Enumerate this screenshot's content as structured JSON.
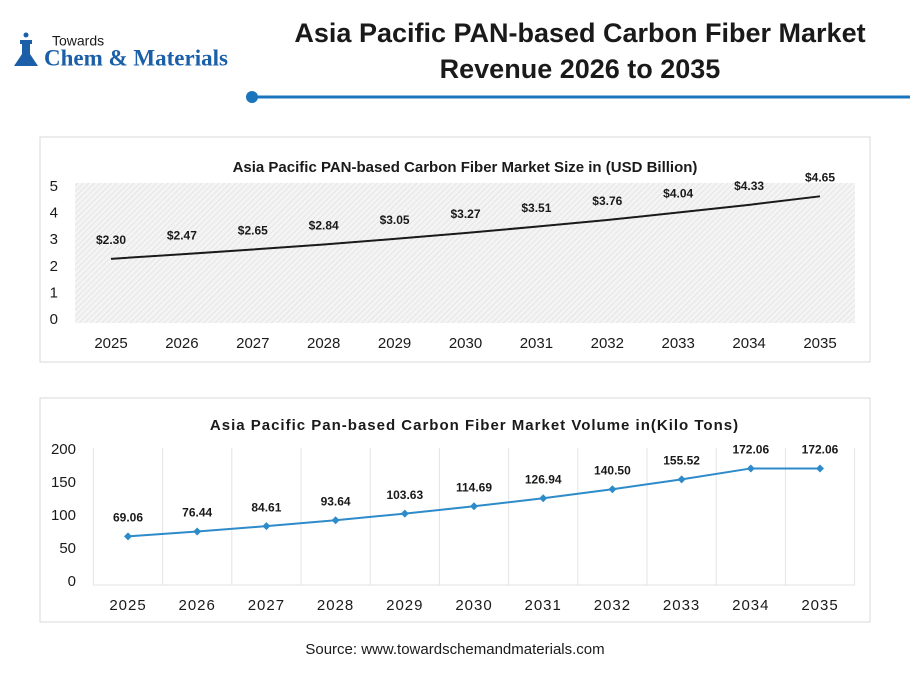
{
  "logo": {
    "top": "Towards",
    "name": "Chem & Materials"
  },
  "title_lines": [
    "Asia Pacific PAN-based Carbon Fiber Market",
    "Revenue 2026 to 2035"
  ],
  "chart_data": [
    {
      "type": "line",
      "title": "Asia Pacific PAN-based Carbon Fiber Market Size in (USD Billion)",
      "categories": [
        "2025",
        "2026",
        "2027",
        "2028",
        "2029",
        "2030",
        "2031",
        "2032",
        "2033",
        "2034",
        "2035"
      ],
      "values": [
        2.3,
        2.47,
        2.65,
        2.84,
        3.05,
        3.27,
        3.51,
        3.76,
        4.04,
        4.33,
        4.65
      ],
      "value_labels": [
        "$2.30",
        "$2.47",
        "$2.65",
        "$2.84",
        "$3.05",
        "$3.27",
        "$3.51",
        "$3.76",
        "$4.04",
        "$4.33",
        "$4.65"
      ],
      "color": "#1a1a1a",
      "ylim": [
        0,
        5
      ],
      "yticks": [
        0,
        1,
        2,
        3,
        4,
        5
      ],
      "background": "hatch"
    },
    {
      "type": "line",
      "title": "Asia Pacific Pan-based Carbon Fiber Market Volume in(Kilo Tons)",
      "categories": [
        "2025",
        "2026",
        "2027",
        "2028",
        "2029",
        "2030",
        "2031",
        "2032",
        "2033",
        "2034",
        "2035"
      ],
      "values": [
        69.06,
        76.44,
        84.61,
        93.64,
        103.63,
        114.69,
        126.94,
        140.5,
        155.52,
        172.06,
        172.06
      ],
      "value_labels": [
        "69.06",
        "76.44",
        "84.61",
        "93.64",
        "103.63",
        "114.69",
        "126.94",
        "140.50",
        "155.52",
        "172.06",
        "172.06"
      ],
      "color": "#2e8bc9",
      "marker": "diamond",
      "ylim": [
        0,
        200
      ],
      "yticks": [
        0,
        50,
        100,
        150,
        200
      ],
      "vgrid": true
    }
  ],
  "source": "Source: www.towardschemandmaterials.com"
}
